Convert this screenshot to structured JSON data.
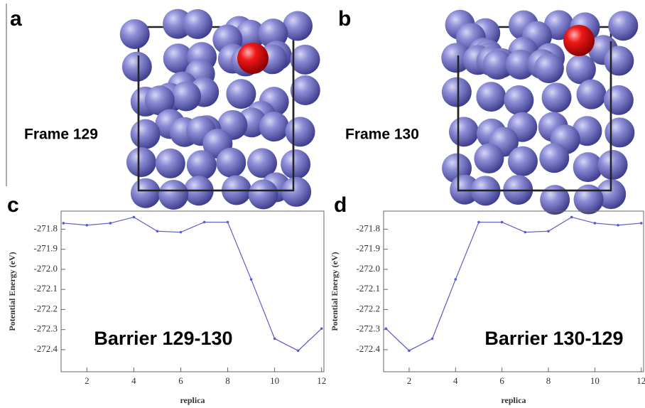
{
  "panels": [
    {
      "label": "a",
      "caption": "Frame 129"
    },
    {
      "label": "b",
      "caption": "Frame 130"
    }
  ],
  "chart_data": [
    {
      "type": "line",
      "label": "c",
      "annotation": "Barrier 129-130",
      "x_label": "replica",
      "y_label": "Potential Energy (eV)",
      "x": [
        1,
        2,
        3,
        4,
        5,
        6,
        7,
        8,
        9,
        10,
        11,
        12
      ],
      "values": [
        -271.77,
        -271.78,
        -271.77,
        -271.74,
        -271.81,
        -271.815,
        -271.765,
        -271.765,
        -272.05,
        -272.345,
        -272.405,
        -272.295
      ],
      "color": "#5c5cc8",
      "xlim": [
        0.9,
        12.1
      ],
      "ylim": [
        -272.51,
        -271.71
      ],
      "xticks": [
        2,
        4,
        6,
        8,
        10,
        12
      ],
      "yticks": [
        {
          "value": -271.8,
          "label": "-271.8"
        },
        {
          "value": -271.9,
          "label": "-271.9"
        },
        {
          "value": -272,
          "label": "-272.0"
        },
        {
          "value": -272.1,
          "label": "-272.1"
        },
        {
          "value": -272.2,
          "label": "-272.2"
        },
        {
          "value": -272.3,
          "label": "-272.3"
        },
        {
          "value": -272.4,
          "label": "-272.4"
        }
      ]
    },
    {
      "type": "line",
      "label": "d",
      "annotation": "Barrier 130-129",
      "x_label": "replica",
      "y_label": "Potential Energy (eV)",
      "x": [
        1,
        2,
        3,
        4,
        5,
        6,
        7,
        8,
        9,
        10,
        11,
        12
      ],
      "values": [
        -272.295,
        -272.405,
        -272.345,
        -272.05,
        -271.765,
        -271.765,
        -271.815,
        -271.81,
        -271.74,
        -271.77,
        -271.78,
        -271.77
      ],
      "color": "#5c5cc8",
      "xlim": [
        0.9,
        12.1
      ],
      "ylim": [
        -272.51,
        -271.71
      ],
      "xticks": [
        2,
        4,
        6,
        8,
        10,
        12
      ],
      "yticks": [
        {
          "value": -271.8,
          "label": "-271.8"
        },
        {
          "value": -271.9,
          "label": "-271.9"
        },
        {
          "value": -272,
          "label": "-272.0"
        },
        {
          "value": -272.1,
          "label": "-272.1"
        },
        {
          "value": -272.2,
          "label": "-272.2"
        },
        {
          "value": -272.3,
          "label": "-272.3"
        },
        {
          "value": -272.4,
          "label": "-272.4"
        }
      ]
    }
  ]
}
